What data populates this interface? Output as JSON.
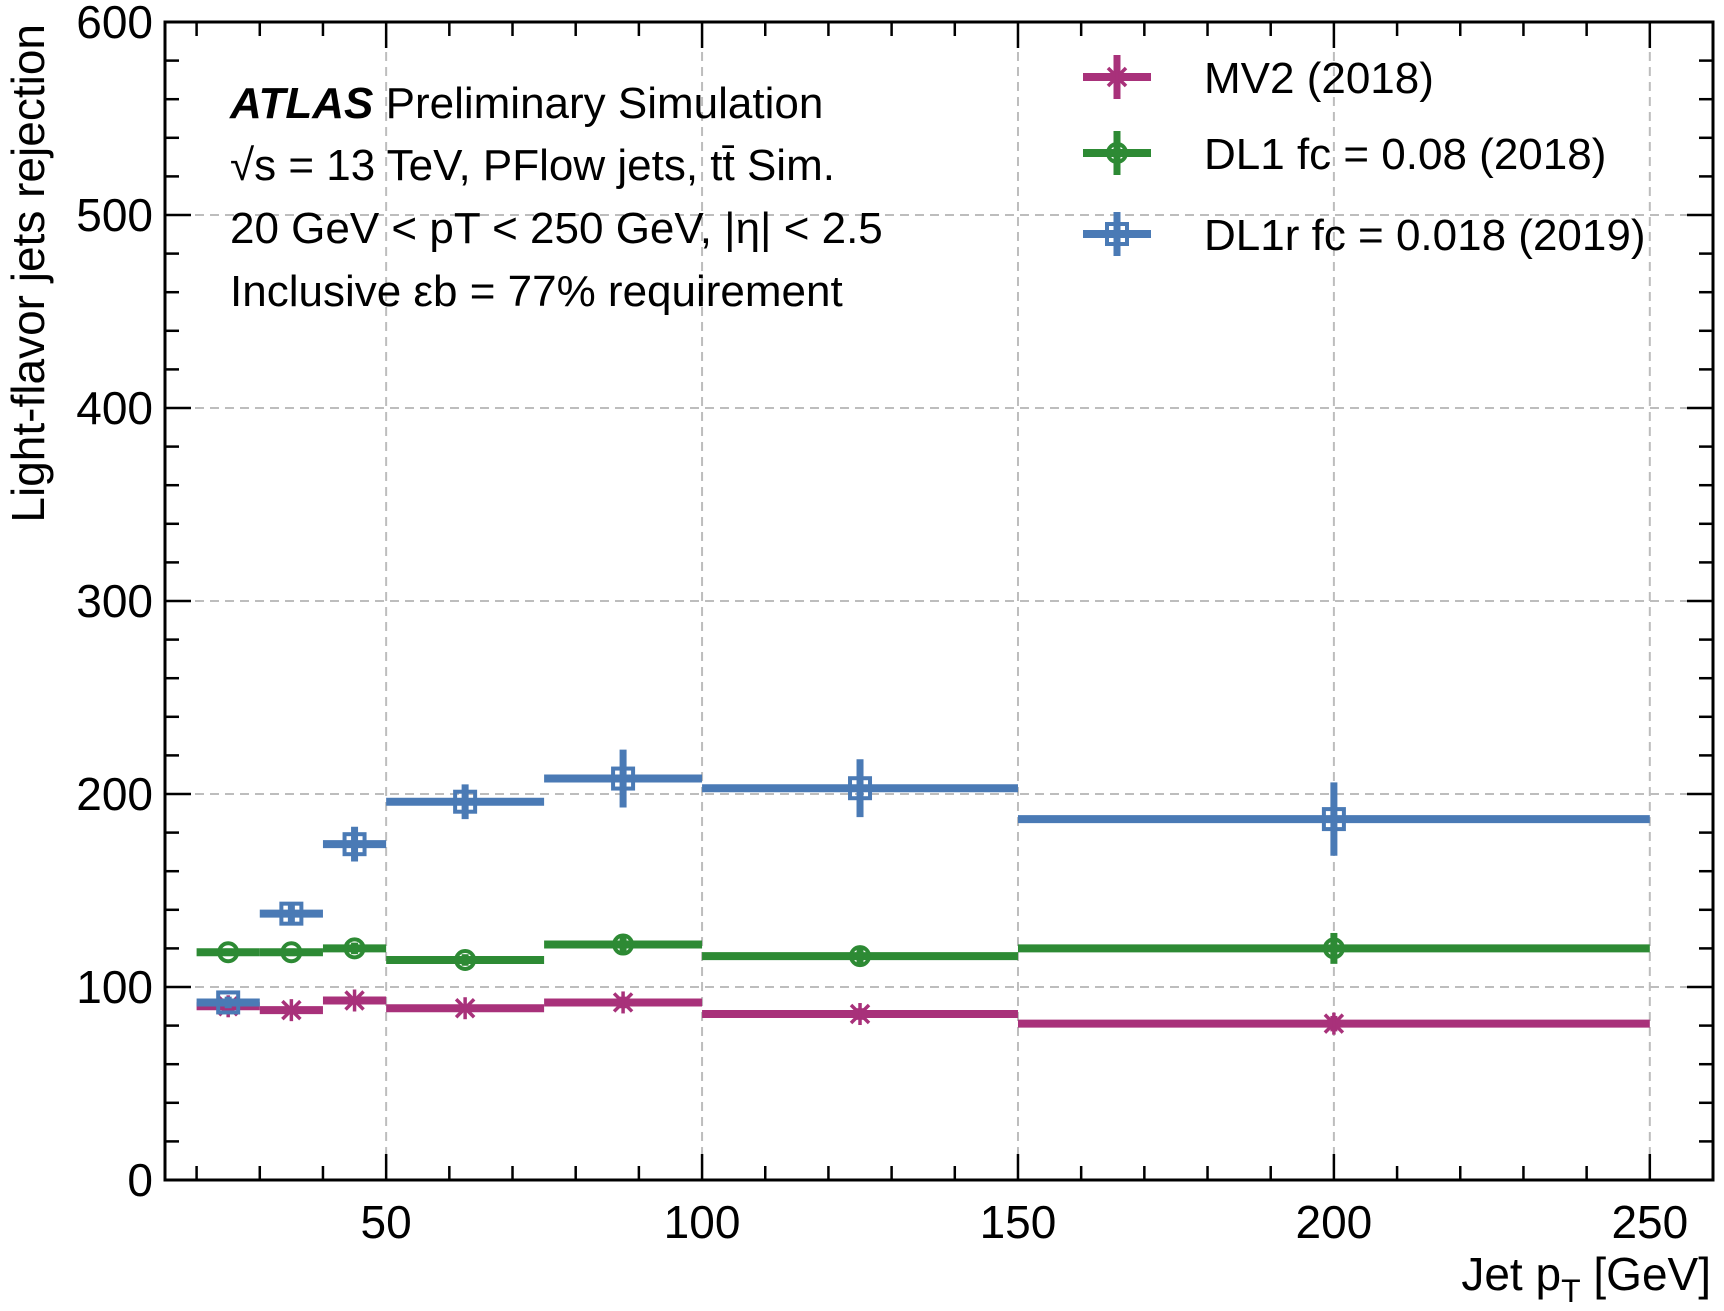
{
  "chart_data": {
    "type": "scatter",
    "xlabel": {
      "main": "Jet p",
      "sub": "T",
      "unit": " [GeV]"
    },
    "ylabel": "Light-flavor jets rejection",
    "xlim": [
      15,
      260
    ],
    "ylim": [
      0,
      600
    ],
    "xticks": [
      50,
      100,
      150,
      200,
      250
    ],
    "yticks": [
      0,
      100,
      200,
      300,
      400,
      500,
      600
    ],
    "x_minor_step": 10,
    "y_minor_step": 20,
    "grid": true,
    "legend_position": "top-right",
    "annotation": {
      "line1_bold": "ATLAS",
      "line1_rest": " Preliminary Simulation",
      "line2": "√s = 13 TeV, PFlow jets, tt̄ Sim.",
      "line3": "20 GeV < pT < 250 GeV, |η| < 2.5",
      "line4": "Inclusive εb = 77% requirement"
    },
    "series": [
      {
        "name": "MV2 (2018)",
        "color": "#a8317a",
        "marker": "x",
        "x": [
          25,
          35,
          45,
          62.5,
          87.5,
          125,
          200
        ],
        "xerr_low": [
          20,
          30,
          40,
          50,
          75,
          100,
          150
        ],
        "xerr_high": [
          30,
          40,
          50,
          75,
          100,
          150,
          250
        ],
        "y": [
          90,
          88,
          93,
          89,
          92,
          86,
          81
        ],
        "yerr": [
          2,
          2,
          2,
          2,
          3,
          3,
          4
        ]
      },
      {
        "name": "DL1 fc = 0.08 (2018)",
        "color": "#2d8a34",
        "marker": "o",
        "x": [
          25,
          35,
          45,
          62.5,
          87.5,
          125,
          200
        ],
        "xerr_low": [
          20,
          30,
          40,
          50,
          75,
          100,
          150
        ],
        "xerr_high": [
          30,
          40,
          50,
          75,
          100,
          150,
          250
        ],
        "y": [
          118,
          118,
          120,
          114,
          122,
          116,
          120
        ],
        "yerr": [
          2,
          2,
          3,
          3,
          4,
          5,
          8
        ]
      },
      {
        "name": "DL1r fc = 0.018 (2019)",
        "color": "#4a7ab5",
        "marker": "s",
        "x": [
          25,
          35,
          45,
          62.5,
          87.5,
          125,
          200
        ],
        "xerr_low": [
          20,
          30,
          40,
          50,
          75,
          100,
          150
        ],
        "xerr_high": [
          30,
          40,
          50,
          75,
          100,
          150,
          250
        ],
        "y": [
          92,
          138,
          174,
          196,
          208,
          203,
          187
        ],
        "yerr": [
          3,
          5,
          9,
          9,
          15,
          15,
          19
        ]
      }
    ]
  }
}
